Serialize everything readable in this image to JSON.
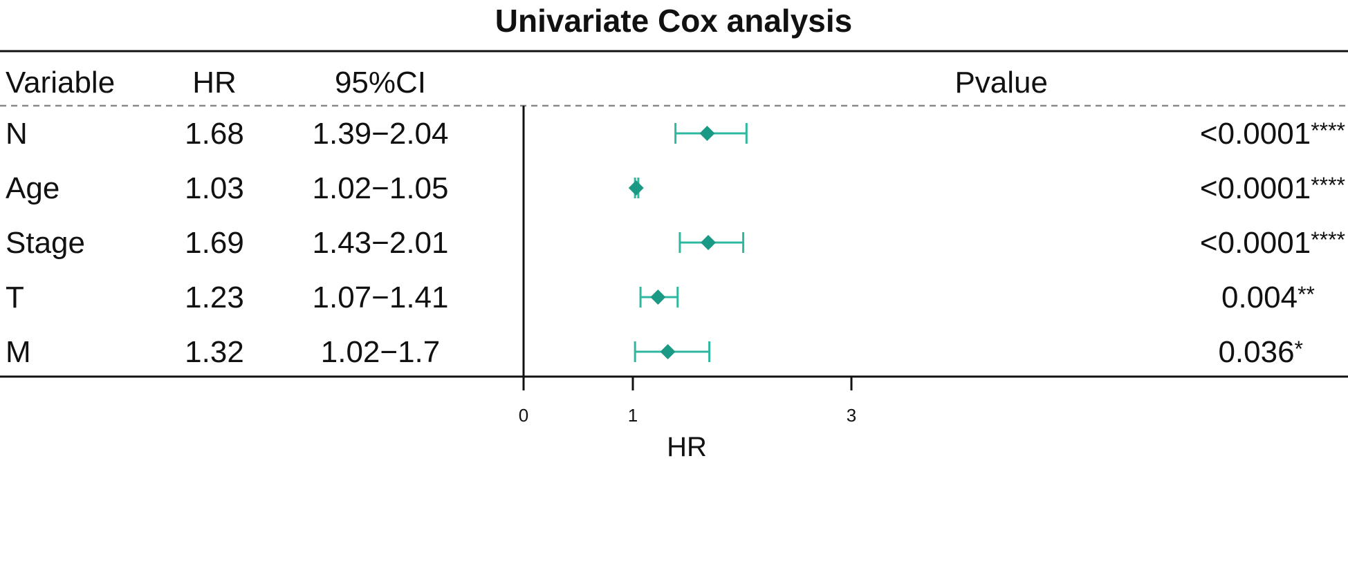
{
  "chart_data": {
    "type": "forest",
    "title": "Univariate Cox analysis",
    "columns": {
      "variable": "Variable",
      "hr": "HR",
      "ci": "95%CI",
      "pvalue": "Pvalue"
    },
    "rows": [
      {
        "variable": "N",
        "hr": "1.68",
        "ci": "1.39−2.04",
        "p": "<0.0001",
        "stars": "****",
        "hr_value": 1.68,
        "lower": 1.39,
        "upper": 2.04
      },
      {
        "variable": "Age",
        "hr": "1.03",
        "ci": "1.02−1.05",
        "p": "<0.0001",
        "stars": "****",
        "hr_value": 1.03,
        "lower": 1.02,
        "upper": 1.05
      },
      {
        "variable": "Stage",
        "hr": "1.69",
        "ci": "1.43−2.01",
        "p": "<0.0001",
        "stars": "****",
        "hr_value": 1.69,
        "lower": 1.43,
        "upper": 2.01
      },
      {
        "variable": "T",
        "hr": "1.23",
        "ci": "1.07−1.41",
        "p": "0.004",
        "stars": "**",
        "hr_value": 1.23,
        "lower": 1.07,
        "upper": 1.41
      },
      {
        "variable": "M",
        "hr": "1.32",
        "ci": "1.02−1.7",
        "p": "0.036",
        "stars": "*",
        "hr_value": 1.32,
        "lower": 1.02,
        "upper": 1.7
      }
    ],
    "x_axis": {
      "label": "HR",
      "ticks": [
        "0",
        "1",
        "3"
      ],
      "tick_values": [
        0,
        1,
        3
      ],
      "range": [
        0,
        5
      ]
    },
    "reference_line": 0,
    "marker_color": "#1a9985",
    "ci_color": "#2fb8a0"
  }
}
